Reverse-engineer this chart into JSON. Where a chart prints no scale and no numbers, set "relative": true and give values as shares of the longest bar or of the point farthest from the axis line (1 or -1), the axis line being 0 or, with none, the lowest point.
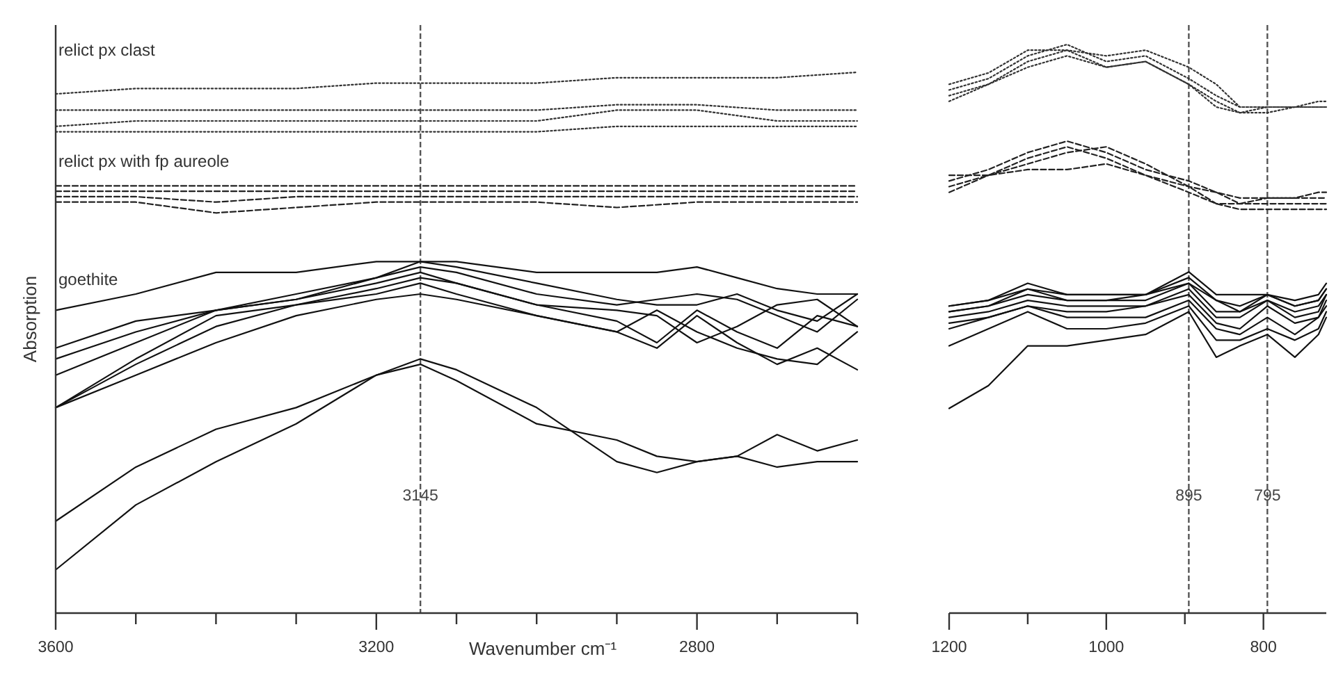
{
  "chart_data": [
    {
      "type": "line",
      "relative": true,
      "ylabel": "Absorption",
      "xlabel": "Wavenumber cm⁻¹",
      "xlim": [
        3600,
        2600
      ],
      "xticks": [
        3600,
        {
          "value": 3500,
          "label": null
        },
        {
          "value": 3400,
          "label": null
        },
        {
          "value": 3300,
          "label": null
        },
        3200,
        {
          "value": 3100,
          "label": null
        },
        {
          "value": 3000,
          "label": null
        },
        {
          "value": 2900,
          "label": null
        },
        2800,
        {
          "value": 2700,
          "label": null
        },
        {
          "value": 2600,
          "label": null
        }
      ],
      "grid": false,
      "marker": "none",
      "ref_lines": [
        {
          "axis": "x",
          "value": 3145,
          "label": "3145",
          "line_style": "dashed",
          "color": "#555555"
        }
      ],
      "annotations": [
        "relict px clast",
        "relict px with fp aureole",
        "goethite"
      ],
      "x": [
        3600,
        3500,
        3400,
        3300,
        3200,
        3100,
        3000,
        2900,
        2800,
        2700,
        2600
      ],
      "series": [
        {
          "color": "#333333",
          "line_style": "dotted",
          "values": [
            0.96,
            0.97,
            0.97,
            0.97,
            0.98,
            0.98,
            0.98,
            0.99,
            0.99,
            0.99,
            1.0
          ]
        },
        {
          "color": "#333333",
          "line_style": "dotted",
          "values": [
            0.93,
            0.93,
            0.93,
            0.93,
            0.93,
            0.93,
            0.93,
            0.94,
            0.94,
            0.93,
            0.93
          ]
        },
        {
          "color": "#333333",
          "line_style": "dotted",
          "values": [
            0.9,
            0.91,
            0.91,
            0.91,
            0.91,
            0.91,
            0.91,
            0.93,
            0.93,
            0.91,
            0.91
          ]
        },
        {
          "color": "#333333",
          "line_style": "dotted",
          "values": [
            0.89,
            0.89,
            0.89,
            0.89,
            0.89,
            0.89,
            0.89,
            0.9,
            0.9,
            0.9,
            0.9
          ]
        },
        {
          "color": "#222222",
          "line_style": "dashed",
          "values": [
            0.79,
            0.79,
            0.79,
            0.79,
            0.79,
            0.79,
            0.79,
            0.79,
            0.79,
            0.79,
            0.79
          ]
        },
        {
          "color": "#222222",
          "line_style": "dashed",
          "values": [
            0.78,
            0.78,
            0.78,
            0.78,
            0.78,
            0.78,
            0.78,
            0.78,
            0.78,
            0.78,
            0.78
          ]
        },
        {
          "color": "#222222",
          "line_style": "dashed",
          "values": [
            0.77,
            0.77,
            0.76,
            0.77,
            0.77,
            0.77,
            0.77,
            0.77,
            0.77,
            0.77,
            0.77
          ]
        },
        {
          "color": "#222222",
          "line_style": "dashed",
          "values": [
            0.76,
            0.76,
            0.74,
            0.75,
            0.76,
            0.76,
            0.76,
            0.75,
            0.76,
            0.76,
            0.76
          ]
        },
        {
          "color": "#111111",
          "line_style": "solid",
          "x": [
            3600,
            3500,
            3400,
            3300,
            3200,
            3145,
            3100,
            3000,
            2900,
            2850,
            2800,
            2750,
            2700,
            2650,
            2600
          ],
          "values": [
            0.56,
            0.59,
            0.63,
            0.63,
            0.65,
            0.65,
            0.65,
            0.63,
            0.63,
            0.63,
            0.64,
            0.62,
            0.6,
            0.59,
            0.59
          ]
        },
        {
          "color": "#111111",
          "line_style": "solid",
          "x": [
            3600,
            3500,
            3400,
            3300,
            3200,
            3145,
            3100,
            3000,
            2900,
            2850,
            2800,
            2750,
            2700,
            2650,
            2600
          ],
          "values": [
            0.49,
            0.54,
            0.56,
            0.58,
            0.62,
            0.65,
            0.64,
            0.61,
            0.58,
            0.57,
            0.57,
            0.59,
            0.56,
            0.54,
            0.59
          ]
        },
        {
          "color": "#111111",
          "line_style": "solid",
          "x": [
            3600,
            3500,
            3400,
            3300,
            3200,
            3145,
            3100,
            3000,
            2900,
            2850,
            2800,
            2750,
            2700,
            2650,
            2600
          ],
          "values": [
            0.47,
            0.52,
            0.56,
            0.59,
            0.62,
            0.64,
            0.63,
            0.59,
            0.57,
            0.58,
            0.59,
            0.58,
            0.55,
            0.52,
            0.58
          ]
        },
        {
          "color": "#111111",
          "line_style": "solid",
          "x": [
            3600,
            3500,
            3400,
            3300,
            3200,
            3145,
            3100,
            3000,
            2900,
            2850,
            2800,
            2750,
            2700,
            2650,
            2600
          ],
          "values": [
            0.44,
            0.5,
            0.56,
            0.58,
            0.61,
            0.63,
            0.61,
            0.57,
            0.56,
            0.55,
            0.5,
            0.53,
            0.57,
            0.58,
            0.53
          ]
        },
        {
          "color": "#111111",
          "line_style": "solid",
          "x": [
            3600,
            3500,
            3400,
            3300,
            3200,
            3145,
            3100,
            3000,
            2900,
            2850,
            2800,
            2750,
            2700,
            2650,
            2600
          ],
          "values": [
            0.38,
            0.47,
            0.55,
            0.57,
            0.6,
            0.62,
            0.61,
            0.57,
            0.54,
            0.5,
            0.56,
            0.52,
            0.49,
            0.55,
            0.53
          ]
        },
        {
          "color": "#111111",
          "line_style": "solid",
          "x": [
            3600,
            3500,
            3400,
            3300,
            3200,
            3145,
            3100,
            3000,
            2900,
            2850,
            2800,
            2750,
            2700,
            2650,
            2600
          ],
          "values": [
            0.38,
            0.46,
            0.53,
            0.57,
            0.59,
            0.61,
            0.59,
            0.55,
            0.52,
            0.49,
            0.55,
            0.5,
            0.46,
            0.49,
            0.45
          ]
        },
        {
          "color": "#111111",
          "line_style": "solid",
          "x": [
            3600,
            3500,
            3400,
            3300,
            3200,
            3145,
            3100,
            3000,
            2900,
            2850,
            2800,
            2750,
            2700,
            2650,
            2600
          ],
          "values": [
            0.38,
            0.44,
            0.5,
            0.55,
            0.58,
            0.59,
            0.58,
            0.55,
            0.52,
            0.56,
            0.52,
            0.49,
            0.47,
            0.46,
            0.52
          ]
        },
        {
          "color": "#111111",
          "line_style": "solid",
          "x": [
            3600,
            3500,
            3400,
            3300,
            3200,
            3145,
            3100,
            3000,
            2900,
            2850,
            2800,
            2750,
            2700,
            2650,
            2600
          ],
          "values": [
            0.17,
            0.27,
            0.34,
            0.38,
            0.44,
            0.46,
            0.43,
            0.35,
            0.32,
            0.29,
            0.28,
            0.29,
            0.33,
            0.3,
            0.32
          ]
        },
        {
          "color": "#111111",
          "line_style": "solid",
          "x": [
            3600,
            3500,
            3400,
            3300,
            3200,
            3145,
            3100,
            3000,
            2900,
            2850,
            2800,
            2750,
            2700,
            2650,
            2600
          ],
          "values": [
            0.08,
            0.2,
            0.28,
            0.35,
            0.44,
            0.47,
            0.45,
            0.38,
            0.28,
            0.26,
            0.28,
            0.29,
            0.27,
            0.28,
            0.28
          ]
        }
      ]
    },
    {
      "type": "line",
      "relative": true,
      "xlim": [
        1200,
        720
      ],
      "xticks": [
        1200,
        {
          "value": 1100,
          "label": null
        },
        1000,
        {
          "value": 900,
          "label": null
        },
        800
      ],
      "grid": false,
      "marker": "none",
      "ref_lines": [
        {
          "axis": "x",
          "value": 895,
          "label": "895",
          "line_style": "dashed",
          "color": "#555555"
        },
        {
          "axis": "x",
          "value": 795,
          "label": "795",
          "line_style": "dashed",
          "color": "#555555"
        }
      ],
      "x": [
        1200,
        1150,
        1100,
        1050,
        1000,
        950,
        895,
        860,
        830,
        795,
        760,
        730,
        720
      ],
      "series": [
        {
          "color": "#333333",
          "line_style": "dotted",
          "values": [
            0.93,
            0.95,
            0.99,
            0.99,
            0.98,
            0.99,
            0.96,
            0.93,
            0.89,
            0.89,
            0.89,
            0.9,
            0.9
          ]
        },
        {
          "color": "#333333",
          "line_style": "dotted",
          "values": [
            0.92,
            0.94,
            0.98,
            1.0,
            0.97,
            0.98,
            0.94,
            0.91,
            0.89,
            0.89,
            0.89,
            0.89,
            0.89
          ]
        },
        {
          "color": "#333333",
          "line_style": "dotted",
          "values": [
            0.91,
            0.93,
            0.97,
            0.99,
            0.96,
            0.97,
            0.93,
            0.9,
            0.88,
            0.89,
            0.89,
            0.89,
            0.89
          ]
        },
        {
          "color": "#333333",
          "line_style": "dotted",
          "values": [
            0.9,
            0.93,
            0.96,
            0.98,
            0.96,
            0.97,
            0.93,
            0.89,
            0.88,
            0.88,
            0.89,
            0.89,
            0.89
          ]
        },
        {
          "color": "#222222",
          "line_style": "dashed",
          "values": [
            0.76,
            0.78,
            0.81,
            0.83,
            0.81,
            0.78,
            0.76,
            0.74,
            0.72,
            0.73,
            0.73,
            0.74,
            0.74
          ]
        },
        {
          "color": "#222222",
          "line_style": "dashed",
          "values": [
            0.75,
            0.77,
            0.8,
            0.82,
            0.8,
            0.77,
            0.75,
            0.74,
            0.73,
            0.73,
            0.73,
            0.73,
            0.73
          ]
        },
        {
          "color": "#222222",
          "line_style": "dashed",
          "values": [
            0.74,
            0.77,
            0.79,
            0.81,
            0.82,
            0.79,
            0.75,
            0.72,
            0.72,
            0.72,
            0.72,
            0.72,
            0.72
          ]
        },
        {
          "color": "#222222",
          "line_style": "dashed",
          "values": [
            0.77,
            0.77,
            0.78,
            0.78,
            0.79,
            0.77,
            0.74,
            0.72,
            0.71,
            0.71,
            0.71,
            0.71,
            0.71
          ]
        },
        {
          "color": "#111111",
          "line_style": "solid",
          "values": [
            0.54,
            0.55,
            0.58,
            0.56,
            0.56,
            0.56,
            0.6,
            0.56,
            0.56,
            0.56,
            0.55,
            0.56,
            0.58
          ]
        },
        {
          "color": "#111111",
          "line_style": "solid",
          "values": [
            0.54,
            0.55,
            0.57,
            0.56,
            0.56,
            0.56,
            0.59,
            0.55,
            0.54,
            0.56,
            0.54,
            0.55,
            0.57
          ]
        },
        {
          "color": "#111111",
          "line_style": "solid",
          "values": [
            0.53,
            0.54,
            0.57,
            0.55,
            0.55,
            0.56,
            0.58,
            0.55,
            0.53,
            0.56,
            0.54,
            0.55,
            0.57
          ]
        },
        {
          "color": "#111111",
          "line_style": "solid",
          "values": [
            0.53,
            0.54,
            0.56,
            0.55,
            0.55,
            0.55,
            0.58,
            0.53,
            0.53,
            0.55,
            0.53,
            0.54,
            0.56
          ]
        },
        {
          "color": "#111111",
          "line_style": "solid",
          "values": [
            0.52,
            0.53,
            0.55,
            0.54,
            0.54,
            0.54,
            0.57,
            0.52,
            0.52,
            0.55,
            0.52,
            0.53,
            0.56
          ]
        },
        {
          "color": "#111111",
          "line_style": "solid",
          "values": [
            0.51,
            0.52,
            0.54,
            0.53,
            0.53,
            0.54,
            0.56,
            0.51,
            0.5,
            0.54,
            0.51,
            0.52,
            0.55
          ]
        },
        {
          "color": "#111111",
          "line_style": "solid",
          "values": [
            0.5,
            0.52,
            0.54,
            0.52,
            0.52,
            0.52,
            0.55,
            0.5,
            0.49,
            0.52,
            0.49,
            0.52,
            0.54
          ]
        },
        {
          "color": "#111111",
          "line_style": "solid",
          "values": [
            0.47,
            0.5,
            0.53,
            0.5,
            0.5,
            0.51,
            0.54,
            0.48,
            0.48,
            0.5,
            0.48,
            0.5,
            0.53
          ]
        },
        {
          "color": "#111111",
          "line_style": "solid",
          "values": [
            0.36,
            0.4,
            0.47,
            0.47,
            0.48,
            0.49,
            0.53,
            0.45,
            0.47,
            0.49,
            0.45,
            0.49,
            0.52
          ]
        }
      ]
    }
  ]
}
